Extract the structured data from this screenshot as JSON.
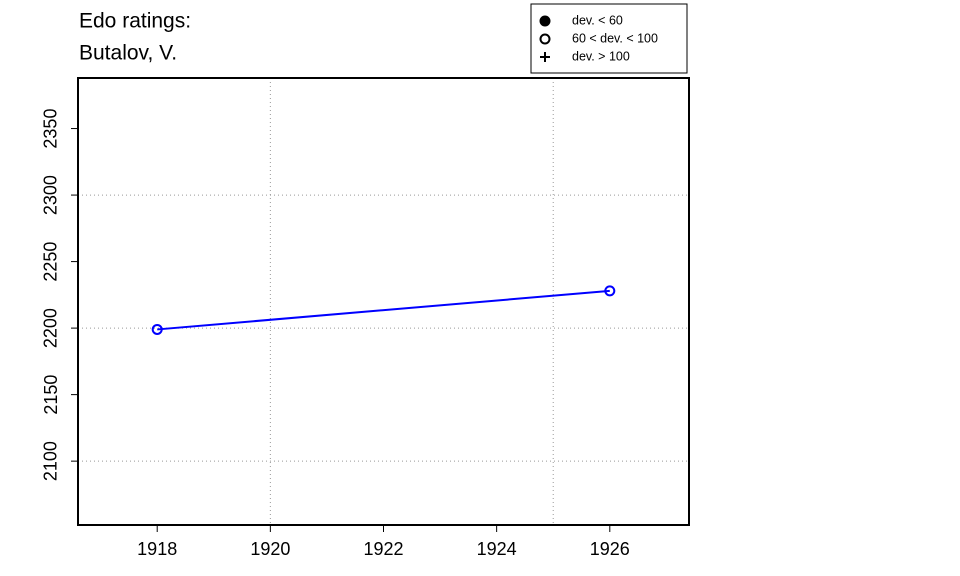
{
  "chart_data": {
    "type": "line",
    "title": "Edo ratings:",
    "subtitle": "Butalov, V.",
    "x": [
      1918,
      1926
    ],
    "series": [
      {
        "color": "#0000ff",
        "marker": "open",
        "values": [
          2199,
          2228
        ]
      }
    ],
    "xlim": [
      1916.6,
      1927.4
    ],
    "ylim": [
      2052,
      2388
    ],
    "xticks": [
      1918,
      1920,
      1922,
      1924,
      1926
    ],
    "yticks": [
      2100,
      2150,
      2200,
      2250,
      2300,
      2350
    ],
    "xgrid": [
      1920,
      1925
    ],
    "ygrid": [
      2100,
      2200,
      2300
    ],
    "legend": [
      {
        "label": "dev. < 60",
        "marker": "filled"
      },
      {
        "label": "60 < dev. < 100",
        "marker": "open"
      },
      {
        "label": "dev. > 100",
        "marker": "plus"
      }
    ]
  }
}
